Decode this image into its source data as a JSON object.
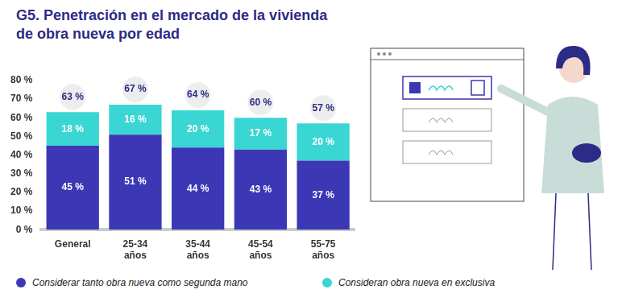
{
  "chart_data": {
    "type": "bar",
    "title": "G5. Penetración en el mercado de la vivienda de obra nueva por edad",
    "categories": [
      "General",
      "25-34 años",
      "35-44 años",
      "45-54 años",
      "55-75 años"
    ],
    "series": [
      {
        "name": "Considerar tanto obra nueva como segunda mano",
        "color": "#3b37b5",
        "values": [
          45,
          51,
          44,
          43,
          37
        ],
        "value_labels": [
          "45 %",
          "51 %",
          "44 %",
          "43 %",
          "37 %"
        ]
      },
      {
        "name": "Consideran obra nueva en exclusiva",
        "color": "#3ad6d3",
        "values": [
          18,
          16,
          20,
          17,
          20
        ],
        "value_labels": [
          "18 %",
          "16 %",
          "20 %",
          "17 %",
          "20 %"
        ]
      }
    ],
    "totals": [
      63,
      67,
      64,
      60,
      57
    ],
    "total_labels": [
      "63 %",
      "67 %",
      "64 %",
      "60 %",
      "57 %"
    ],
    "stacked": true,
    "data_labels": true,
    "grid": false,
    "legend": "bottom",
    "ylim": [
      0,
      80
    ],
    "yticks": [
      {
        "value": 0,
        "label": "0 %"
      },
      {
        "value": 10,
        "label": "10 %"
      },
      {
        "value": 20,
        "label": "20 %"
      },
      {
        "value": 30,
        "label": "30 %"
      },
      {
        "value": 40,
        "label": "40 %"
      },
      {
        "value": 50,
        "label": "50 %"
      },
      {
        "value": 60,
        "label": "60 %"
      },
      {
        "value": 70,
        "label": "70 %"
      },
      {
        "value": 80,
        "label": "80 %"
      }
    ]
  }
}
